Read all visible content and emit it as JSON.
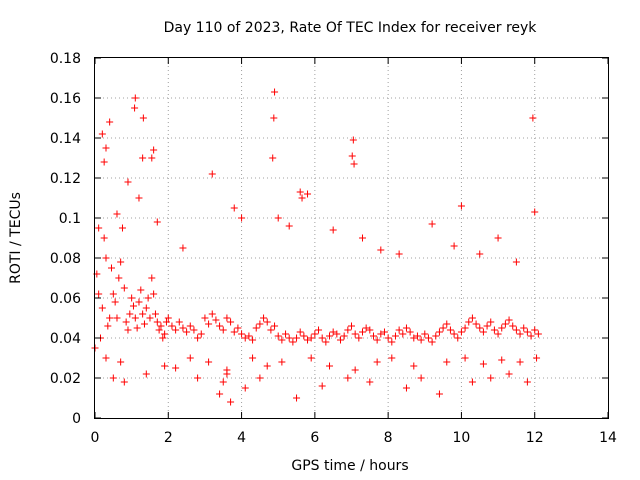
{
  "chart_data": {
    "type": "scatter",
    "title": "Day 110 of 2023, Rate Of TEC Index for receiver reyk",
    "xlabel": "GPS time / hours",
    "ylabel": "ROTI / TECUs",
    "xlim": [
      0,
      14
    ],
    "ylim": [
      0,
      0.18
    ],
    "x_ticks": [
      "0",
      "2",
      "4",
      "6",
      "8",
      "10",
      "12",
      "14"
    ],
    "y_ticks": [
      "0",
      "0.02",
      "0.04",
      "0.06",
      "0.08",
      "0.1",
      "0.12",
      "0.14",
      "0.16",
      "0.18"
    ],
    "grid": true,
    "marker": "+",
    "series": [
      {
        "color": "#ff0000",
        "x": [
          0.0,
          0.05,
          0.1,
          0.15,
          0.2,
          0.25,
          0.3,
          0.35,
          0.4,
          0.45,
          0.5,
          0.55,
          0.6,
          0.65,
          0.7,
          0.75,
          0.8,
          0.85,
          0.9,
          0.95,
          1.0,
          1.05,
          1.1,
          1.15,
          1.2,
          1.25,
          1.3,
          1.35,
          1.4,
          1.45,
          1.5,
          1.55,
          1.6,
          1.65,
          1.7,
          1.75,
          1.8,
          1.85,
          1.9,
          1.95,
          2.0,
          2.1,
          2.2,
          2.3,
          2.4,
          2.5,
          2.6,
          2.7,
          2.8,
          2.9,
          3.0,
          3.1,
          3.2,
          3.3,
          3.4,
          3.5,
          3.6,
          3.7,
          3.8,
          3.9,
          4.0,
          4.1,
          4.2,
          4.3,
          4.4,
          4.5,
          4.6,
          4.7,
          4.8,
          4.9,
          5.0,
          5.1,
          5.2,
          5.3,
          5.4,
          5.5,
          5.6,
          5.7,
          5.8,
          5.9,
          6.0,
          6.1,
          6.2,
          6.3,
          6.4,
          6.5,
          6.6,
          6.7,
          6.8,
          6.9,
          7.0,
          7.1,
          7.2,
          7.3,
          7.4,
          7.5,
          7.6,
          7.7,
          7.8,
          7.9,
          8.0,
          8.1,
          8.2,
          8.3,
          8.4,
          8.5,
          8.6,
          8.7,
          8.8,
          8.9,
          9.0,
          9.1,
          9.2,
          9.3,
          9.4,
          9.5,
          9.6,
          9.7,
          9.8,
          9.9,
          10.0,
          10.1,
          10.2,
          10.3,
          10.4,
          10.5,
          10.6,
          10.7,
          10.8,
          10.9,
          11.0,
          11.1,
          11.2,
          11.3,
          11.4,
          11.5,
          11.6,
          11.7,
          11.8,
          11.9,
          12.0,
          12.1,
          0.2,
          0.3,
          0.25,
          0.4,
          1.1,
          1.08,
          1.3,
          1.32,
          1.55,
          1.6,
          4.9,
          4.88,
          4.85,
          7.05,
          7.02,
          7.07,
          11.95,
          0.1,
          0.6,
          0.9,
          1.2,
          1.7,
          2.4,
          3.2,
          3.8,
          4.0,
          5.0,
          5.3,
          5.8,
          6.5,
          7.3,
          7.8,
          8.3,
          9.2,
          9.8,
          10.0,
          10.5,
          11.0,
          11.5,
          12.0,
          0.5,
          0.8,
          1.4,
          2.2,
          2.8,
          3.4,
          3.5,
          4.1,
          4.5,
          5.5,
          6.2,
          6.9,
          7.5,
          8.5,
          8.9,
          9.4,
          10.3,
          10.8,
          11.3,
          11.8,
          0.3,
          0.7,
          1.9,
          2.6,
          3.1,
          3.6,
          4.3,
          4.7,
          5.1,
          5.9,
          6.4,
          7.1,
          7.7,
          8.1,
          8.7,
          9.6,
          10.1,
          10.6,
          11.1,
          11.6,
          12.05,
          5.6,
          5.65,
          3.6,
          3.7
        ],
        "y": [
          0.035,
          0.072,
          0.062,
          0.04,
          0.055,
          0.09,
          0.08,
          0.046,
          0.05,
          0.075,
          0.062,
          0.058,
          0.05,
          0.07,
          0.078,
          0.095,
          0.065,
          0.048,
          0.044,
          0.052,
          0.06,
          0.056,
          0.05,
          0.045,
          0.058,
          0.064,
          0.052,
          0.047,
          0.055,
          0.06,
          0.05,
          0.07,
          0.062,
          0.052,
          0.048,
          0.044,
          0.046,
          0.04,
          0.042,
          0.048,
          0.05,
          0.046,
          0.044,
          0.048,
          0.045,
          0.043,
          0.046,
          0.044,
          0.04,
          0.042,
          0.05,
          0.047,
          0.052,
          0.049,
          0.046,
          0.044,
          0.05,
          0.048,
          0.043,
          0.045,
          0.042,
          0.04,
          0.041,
          0.039,
          0.045,
          0.047,
          0.05,
          0.048,
          0.044,
          0.046,
          0.041,
          0.039,
          0.042,
          0.04,
          0.038,
          0.04,
          0.043,
          0.041,
          0.039,
          0.04,
          0.042,
          0.044,
          0.04,
          0.038,
          0.041,
          0.043,
          0.042,
          0.039,
          0.041,
          0.044,
          0.046,
          0.042,
          0.04,
          0.043,
          0.045,
          0.044,
          0.041,
          0.039,
          0.042,
          0.043,
          0.04,
          0.038,
          0.041,
          0.044,
          0.042,
          0.045,
          0.043,
          0.04,
          0.041,
          0.039,
          0.042,
          0.04,
          0.038,
          0.041,
          0.043,
          0.045,
          0.047,
          0.044,
          0.042,
          0.04,
          0.043,
          0.045,
          0.048,
          0.05,
          0.047,
          0.045,
          0.043,
          0.046,
          0.048,
          0.044,
          0.042,
          0.045,
          0.047,
          0.049,
          0.046,
          0.044,
          0.042,
          0.045,
          0.043,
          0.041,
          0.044,
          0.042,
          0.142,
          0.135,
          0.128,
          0.148,
          0.16,
          0.155,
          0.13,
          0.15,
          0.13,
          0.134,
          0.163,
          0.15,
          0.13,
          0.139,
          0.131,
          0.127,
          0.15,
          0.095,
          0.102,
          0.118,
          0.11,
          0.098,
          0.085,
          0.122,
          0.105,
          0.1,
          0.1,
          0.096,
          0.112,
          0.094,
          0.09,
          0.084,
          0.082,
          0.097,
          0.086,
          0.106,
          0.082,
          0.09,
          0.078,
          0.103,
          0.02,
          0.018,
          0.022,
          0.025,
          0.02,
          0.012,
          0.018,
          0.015,
          0.02,
          0.01,
          0.016,
          0.02,
          0.018,
          0.015,
          0.02,
          0.012,
          0.018,
          0.02,
          0.022,
          0.018,
          0.03,
          0.028,
          0.026,
          0.03,
          0.028,
          0.024,
          0.03,
          0.026,
          0.028,
          0.03,
          0.026,
          0.024,
          0.028,
          0.03,
          0.026,
          0.028,
          0.03,
          0.027,
          0.029,
          0.028,
          0.03,
          0.113,
          0.11,
          0.022,
          0.008
        ]
      }
    ]
  }
}
